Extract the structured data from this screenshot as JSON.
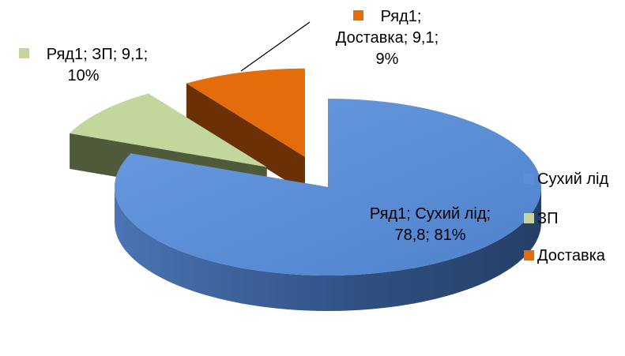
{
  "chart_data": {
    "type": "pie3d",
    "series_name": "Ряд1",
    "categories": [
      "Сухий лід",
      "ЗП",
      "Доставка"
    ],
    "values": [
      78.8,
      9.1,
      9.1
    ],
    "value_labels": [
      "78,8",
      "9,1",
      "9,1"
    ],
    "percents": [
      81,
      10,
      9
    ],
    "percent_labels": [
      "81%",
      "10%",
      "9%"
    ],
    "colors": [
      "#5b8fd8",
      "#c3d69b",
      "#e46c0a"
    ],
    "label_separator": "; ",
    "legend_position": "right",
    "exploded": [
      false,
      true,
      true
    ]
  }
}
